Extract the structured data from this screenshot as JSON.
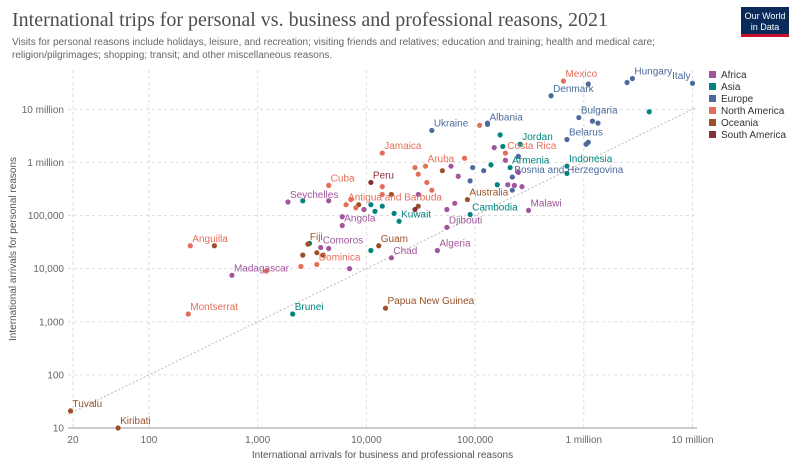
{
  "header": {
    "title": "International trips for personal vs. business and professional reasons, 2021",
    "subtitle": "Visits for personal reasons include holidays, leisure, and recreation; visiting friends and relatives; education and training; health and medical care; religion/pilgrimages; shopping; transit; and other miscellaneous reasons.",
    "logo_line1": "Our World",
    "logo_line2": "in Data"
  },
  "colors": {
    "Africa": "#a2559c",
    "Asia": "#00847e",
    "Europe": "#4c6a9c",
    "North America": "#e56e5a",
    "Oceania": "#9a5129",
    "South America": "#883039",
    "grid": "#dddddd",
    "diagonal": "#bbbbbb"
  },
  "chart_data": {
    "type": "scatter",
    "xscale": "log",
    "yscale": "log",
    "xlabel": "International arrivals for business and professional reasons",
    "ylabel": "International arrivals for personal reasons",
    "xlim": [
      18,
      11000000
    ],
    "ylim": [
      10,
      55000000
    ],
    "x_ticks": [
      {
        "v": 20,
        "label": "20"
      },
      {
        "v": 100,
        "label": "100"
      },
      {
        "v": 1000,
        "label": "1,000"
      },
      {
        "v": 10000,
        "label": "10,000"
      },
      {
        "v": 100000,
        "label": "100,000"
      },
      {
        "v": 1000000,
        "label": "1 million"
      },
      {
        "v": 10000000,
        "label": "10 million"
      }
    ],
    "y_ticks": [
      {
        "v": 10,
        "label": "10"
      },
      {
        "v": 100,
        "label": "100"
      },
      {
        "v": 1000,
        "label": "1,000"
      },
      {
        "v": 10000,
        "label": "10,000"
      },
      {
        "v": 100000,
        "label": "100,000"
      },
      {
        "v": 1000000,
        "label": "1 million"
      },
      {
        "v": 10000000,
        "label": "10 million"
      }
    ],
    "grid": true,
    "reference_line": "y = x (dotted)",
    "legend_position": "right",
    "series": [
      {
        "name": "Africa"
      },
      {
        "name": "Asia"
      },
      {
        "name": "Europe"
      },
      {
        "name": "North America"
      },
      {
        "name": "Oceania"
      },
      {
        "name": "South America"
      }
    ],
    "labeled_points": [
      {
        "label": "Mexico",
        "region": "North America",
        "x": 650000,
        "y": 34000000
      },
      {
        "label": "Hungary",
        "region": "Europe",
        "x": 2800000,
        "y": 38000000
      },
      {
        "label": "Italy",
        "region": "Europe",
        "x": 10000000,
        "y": 31000000
      },
      {
        "label": "Denmark",
        "region": "Europe",
        "x": 500000,
        "y": 18000000
      },
      {
        "label": "Albania",
        "region": "Europe",
        "x": 130000,
        "y": 5200000
      },
      {
        "label": "Bulgaria",
        "region": "Europe",
        "x": 900000,
        "y": 7000000
      },
      {
        "label": "Ukraine",
        "region": "Europe",
        "x": 40000,
        "y": 4000000
      },
      {
        "label": "Jordan",
        "region": "Asia",
        "x": 260000,
        "y": 2200000
      },
      {
        "label": "Belarus",
        "region": "Europe",
        "x": 700000,
        "y": 2700000
      },
      {
        "label": "Jamaica",
        "region": "North America",
        "x": 14000,
        "y": 1500000
      },
      {
        "label": "Costa Rica",
        "region": "North America",
        "x": 190000,
        "y": 1500000
      },
      {
        "label": "Indonesia",
        "region": "Asia",
        "x": 700000,
        "y": 850000
      },
      {
        "label": "Armenia",
        "region": "Asia",
        "x": 210000,
        "y": 800000
      },
      {
        "label": "Aruba",
        "region": "North America",
        "x": 35000,
        "y": 850000
      },
      {
        "label": "Bosnia and Herzegovina",
        "region": "Europe",
        "x": 220000,
        "y": 530000
      },
      {
        "label": "Peru",
        "region": "South America",
        "x": 11000,
        "y": 420000
      },
      {
        "label": "Cuba",
        "region": "North America",
        "x": 4500,
        "y": 370000
      },
      {
        "label": "Australia",
        "region": "Oceania",
        "x": 85000,
        "y": 200000
      },
      {
        "label": "Seychelles",
        "region": "Africa",
        "x": 1900,
        "y": 180000
      },
      {
        "label": "Antigua and Barbuda",
        "region": "North America",
        "x": 6500,
        "y": 160000
      },
      {
        "label": "Malawi",
        "region": "Africa",
        "x": 310000,
        "y": 125000
      },
      {
        "label": "Cambodia",
        "region": "Asia",
        "x": 90000,
        "y": 105000
      },
      {
        "label": "Kuwait",
        "region": "Asia",
        "x": 20000,
        "y": 78000
      },
      {
        "label": "Djibouti",
        "region": "Africa",
        "x": 55000,
        "y": 60000
      },
      {
        "label": "Angola",
        "region": "Africa",
        "x": 6000,
        "y": 65000
      },
      {
        "label": "Anguilla",
        "region": "North America",
        "x": 240,
        "y": 27000
      },
      {
        "label": "Fiji",
        "region": "Oceania",
        "x": 2900,
        "y": 29000
      },
      {
        "label": "Guam",
        "region": "Oceania",
        "x": 13000,
        "y": 27000
      },
      {
        "label": "Comoros",
        "region": "Africa",
        "x": 3800,
        "y": 25000
      },
      {
        "label": "Algeria",
        "region": "Africa",
        "x": 45000,
        "y": 22000
      },
      {
        "label": "Chad",
        "region": "Africa",
        "x": 17000,
        "y": 16000
      },
      {
        "label": "Dominica",
        "region": "North America",
        "x": 3500,
        "y": 12000
      },
      {
        "label": "Madagascar",
        "region": "Africa",
        "x": 580,
        "y": 7500
      },
      {
        "label": "Montserrat",
        "region": "North America",
        "x": 230,
        "y": 1400
      },
      {
        "label": "Brunei",
        "region": "Asia",
        "x": 2100,
        "y": 1400
      },
      {
        "label": "Papua New Guinea",
        "region": "Oceania",
        "x": 15000,
        "y": 1800
      },
      {
        "label": "Tuvalu",
        "region": "Oceania",
        "x": 19,
        "y": 21
      },
      {
        "label": "Kiribati",
        "region": "Oceania",
        "x": 52,
        "y": 10
      }
    ],
    "unlabeled_points": [
      {
        "region": "Asia",
        "x": 4000000,
        "y": 9000000
      },
      {
        "region": "Europe",
        "x": 1100000,
        "y": 30000000
      },
      {
        "region": "Europe",
        "x": 2500000,
        "y": 32000000
      },
      {
        "region": "North America",
        "x": 110000,
        "y": 5000000
      },
      {
        "region": "Europe",
        "x": 130000,
        "y": 5500000
      },
      {
        "region": "Europe",
        "x": 1200000,
        "y": 6000000
      },
      {
        "region": "Asia",
        "x": 170000,
        "y": 3300000
      },
      {
        "region": "Europe",
        "x": 1350000,
        "y": 5500000
      },
      {
        "region": "Europe",
        "x": 1100000,
        "y": 2400000
      },
      {
        "region": "Europe",
        "x": 1050000,
        "y": 2200000
      },
      {
        "region": "Asia",
        "x": 180000,
        "y": 2000000
      },
      {
        "region": "Africa",
        "x": 150000,
        "y": 1900000
      },
      {
        "region": "North America",
        "x": 80000,
        "y": 1200000
      },
      {
        "region": "Africa",
        "x": 190000,
        "y": 1100000
      },
      {
        "region": "Asia",
        "x": 140000,
        "y": 900000
      },
      {
        "region": "Europe",
        "x": 250000,
        "y": 1300000
      },
      {
        "region": "Europe",
        "x": 95000,
        "y": 800000
      },
      {
        "region": "Africa",
        "x": 60000,
        "y": 850000
      },
      {
        "region": "Europe",
        "x": 120000,
        "y": 700000
      },
      {
        "region": "North America",
        "x": 28000,
        "y": 800000
      },
      {
        "region": "Oceania",
        "x": 50000,
        "y": 700000
      },
      {
        "region": "Asia",
        "x": 700000,
        "y": 620000
      },
      {
        "region": "Africa",
        "x": 250000,
        "y": 650000
      },
      {
        "region": "North America",
        "x": 30000,
        "y": 600000
      },
      {
        "region": "Africa",
        "x": 70000,
        "y": 550000
      },
      {
        "region": "Europe",
        "x": 90000,
        "y": 450000
      },
      {
        "region": "Africa",
        "x": 200000,
        "y": 380000
      },
      {
        "region": "Africa",
        "x": 230000,
        "y": 370000
      },
      {
        "region": "Africa",
        "x": 270000,
        "y": 350000
      },
      {
        "region": "North America",
        "x": 14000,
        "y": 350000
      },
      {
        "region": "North America",
        "x": 36000,
        "y": 420000
      },
      {
        "region": "Asia",
        "x": 160000,
        "y": 380000
      },
      {
        "region": "Europe",
        "x": 220000,
        "y": 300000
      },
      {
        "region": "North America",
        "x": 40000,
        "y": 300000
      },
      {
        "region": "Africa",
        "x": 30000,
        "y": 250000
      },
      {
        "region": "North America",
        "x": 14000,
        "y": 250000
      },
      {
        "region": "Oceania",
        "x": 17000,
        "y": 250000
      },
      {
        "region": "Asia",
        "x": 2600,
        "y": 190000
      },
      {
        "region": "Africa",
        "x": 4500,
        "y": 190000
      },
      {
        "region": "North America",
        "x": 7200,
        "y": 200000
      },
      {
        "region": "Oceania",
        "x": 8500,
        "y": 160000
      },
      {
        "region": "Asia",
        "x": 11000,
        "y": 160000
      },
      {
        "region": "Asia",
        "x": 14000,
        "y": 150000
      },
      {
        "region": "Oceania",
        "x": 30000,
        "y": 150000
      },
      {
        "region": "Africa",
        "x": 65000,
        "y": 170000
      },
      {
        "region": "North America",
        "x": 8000,
        "y": 140000
      },
      {
        "region": "Africa",
        "x": 9500,
        "y": 130000
      },
      {
        "region": "Asia",
        "x": 12000,
        "y": 120000
      },
      {
        "region": "South America",
        "x": 28000,
        "y": 130000
      },
      {
        "region": "Africa",
        "x": 55000,
        "y": 130000
      },
      {
        "region": "Asia",
        "x": 18000,
        "y": 110000
      },
      {
        "region": "Africa",
        "x": 6000,
        "y": 95000
      },
      {
        "region": "Asia",
        "x": 3000,
        "y": 30000
      },
      {
        "region": "Oceania",
        "x": 400,
        "y": 27000
      },
      {
        "region": "Africa",
        "x": 4500,
        "y": 24000
      },
      {
        "region": "Oceania",
        "x": 2600,
        "y": 18000
      },
      {
        "region": "North America",
        "x": 2500,
        "y": 11000
      },
      {
        "region": "North America",
        "x": 1200,
        "y": 9000
      },
      {
        "region": "Asia",
        "x": 11000,
        "y": 22000
      },
      {
        "region": "Oceania",
        "x": 3500,
        "y": 20000
      },
      {
        "region": "Oceania",
        "x": 4000,
        "y": 18000
      },
      {
        "region": "Africa",
        "x": 7000,
        "y": 10000
      }
    ]
  }
}
